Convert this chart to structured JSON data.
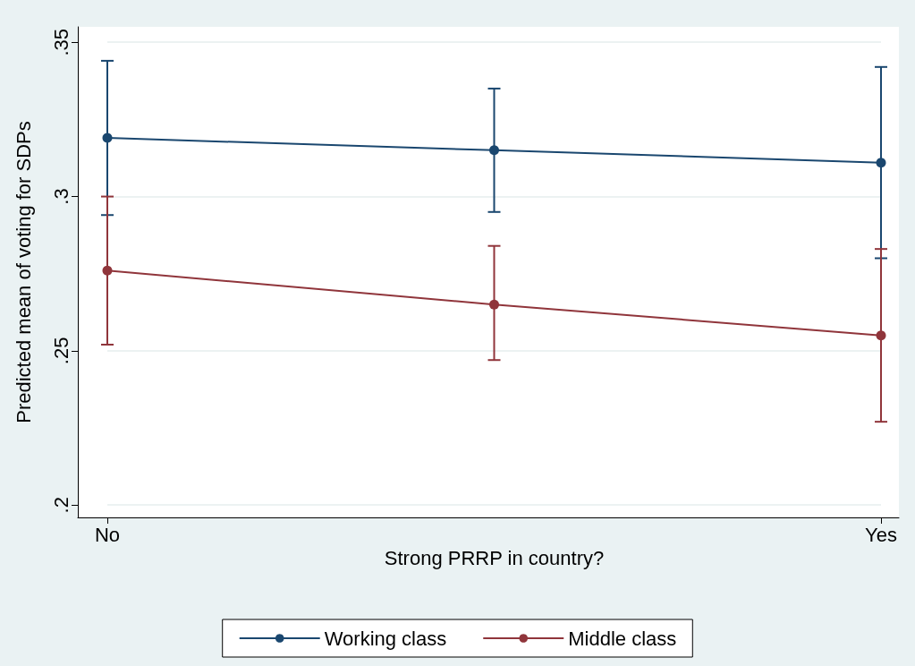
{
  "chart_data": {
    "type": "line",
    "xlabel": "Strong PRRP in country?",
    "ylabel": "Predicted mean of voting for SDPs",
    "categories": [
      "No",
      null,
      "Yes"
    ],
    "ylim": [
      0.196,
      0.355
    ],
    "yticks": [
      {
        "value": 0.2,
        "label": ".2"
      },
      {
        "value": 0.25,
        "label": ".25"
      },
      {
        "value": 0.3,
        "label": ".3"
      },
      {
        "value": 0.35,
        "label": ".35"
      }
    ],
    "grid": "y",
    "legend": "bottom",
    "marker": "circle",
    "line_style": "solid",
    "series": [
      {
        "name": "Working class",
        "color": "#1a476f",
        "values": [
          0.319,
          0.315,
          0.311
        ],
        "errors": [
          [
            0.294,
            0.344
          ],
          [
            0.295,
            0.335
          ],
          [
            0.28,
            0.342
          ]
        ]
      },
      {
        "name": "Middle class",
        "color": "#90353b",
        "values": [
          0.276,
          0.265,
          0.255
        ],
        "errors": [
          [
            0.252,
            0.3
          ],
          [
            0.247,
            0.284
          ],
          [
            0.227,
            0.283
          ]
        ]
      }
    ]
  }
}
